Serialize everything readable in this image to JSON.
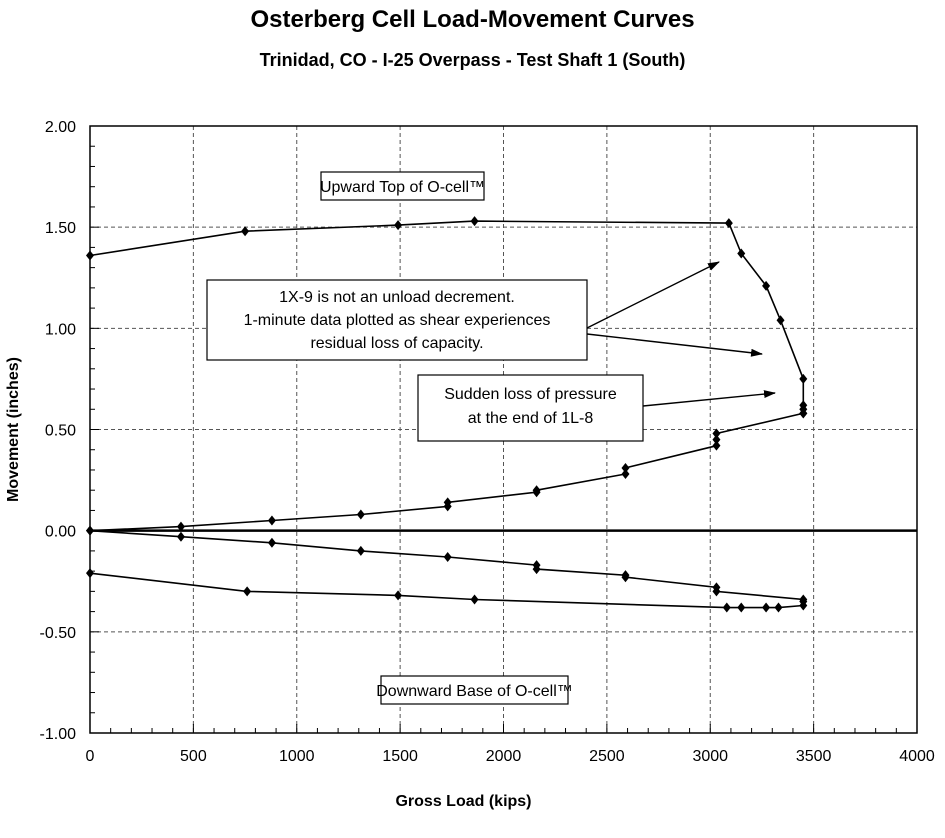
{
  "chart_data": {
    "type": "line",
    "title": "Osterberg Cell Load-Movement Curves",
    "subtitle": "Trinidad, CO - I-25 Overpass - Test Shaft 1 (South)",
    "xlabel": "Gross Load  (kips)",
    "ylabel": "Movement (inches)",
    "xlim": [
      0,
      4000
    ],
    "ylim": [
      -1.0,
      2.0
    ],
    "xticks": [
      "0",
      "500",
      "1000",
      "1500",
      "2000",
      "2500",
      "3000",
      "3500",
      "4000"
    ],
    "yticks": [
      "2.00",
      "1.50",
      "1.00",
      "0.50",
      "0.00",
      "-0.50",
      "-1.00"
    ],
    "grid": true,
    "series": [
      {
        "points": [
          [
            0,
            1.36
          ],
          [
            750,
            1.48
          ],
          [
            1490,
            1.51
          ],
          [
            1860,
            1.53
          ],
          [
            3090,
            1.52
          ],
          [
            3150,
            1.37
          ],
          [
            3270,
            1.21
          ],
          [
            3340,
            1.04
          ],
          [
            3450,
            0.75
          ],
          [
            3450,
            0.62
          ],
          [
            3450,
            0.58
          ]
        ]
      },
      {
        "points": [
          [
            0,
            0.0
          ],
          [
            440,
            0.02
          ],
          [
            880,
            0.05
          ],
          [
            1310,
            0.08
          ],
          [
            1730,
            0.12
          ],
          [
            1730,
            0.14
          ],
          [
            2160,
            0.19
          ],
          [
            2160,
            0.2
          ],
          [
            2590,
            0.28
          ],
          [
            2590,
            0.31
          ],
          [
            3030,
            0.42
          ],
          [
            3030,
            0.45
          ],
          [
            3030,
            0.48
          ],
          [
            3450,
            0.58
          ],
          [
            3450,
            0.6
          ]
        ]
      },
      {
        "points": [
          [
            0,
            0.0
          ],
          [
            440,
            -0.03
          ],
          [
            880,
            -0.06
          ],
          [
            1310,
            -0.1
          ],
          [
            1730,
            -0.13
          ],
          [
            2160,
            -0.17
          ],
          [
            2160,
            -0.19
          ],
          [
            2590,
            -0.22
          ],
          [
            2590,
            -0.23
          ],
          [
            3030,
            -0.28
          ],
          [
            3030,
            -0.3
          ],
          [
            3450,
            -0.34
          ],
          [
            3450,
            -0.35
          ]
        ]
      },
      {
        "points": [
          [
            0,
            -0.21
          ],
          [
            760,
            -0.3
          ],
          [
            1490,
            -0.32
          ],
          [
            1860,
            -0.34
          ],
          [
            3080,
            -0.38
          ],
          [
            3150,
            -0.38
          ],
          [
            3270,
            -0.38
          ],
          [
            3330,
            -0.38
          ],
          [
            3450,
            -0.37
          ]
        ]
      }
    ],
    "annotations": {
      "upward": "Upward Top of O-cell™",
      "downward": "Downward Base of O-cell™",
      "note1_lines": [
        "1X-9 is not an unload decrement.",
        "1-minute data plotted as shear experiences",
        "residual loss of capacity."
      ],
      "note2_lines": [
        "Sudden loss of pressure",
        "at the end of 1L-8"
      ]
    }
  }
}
